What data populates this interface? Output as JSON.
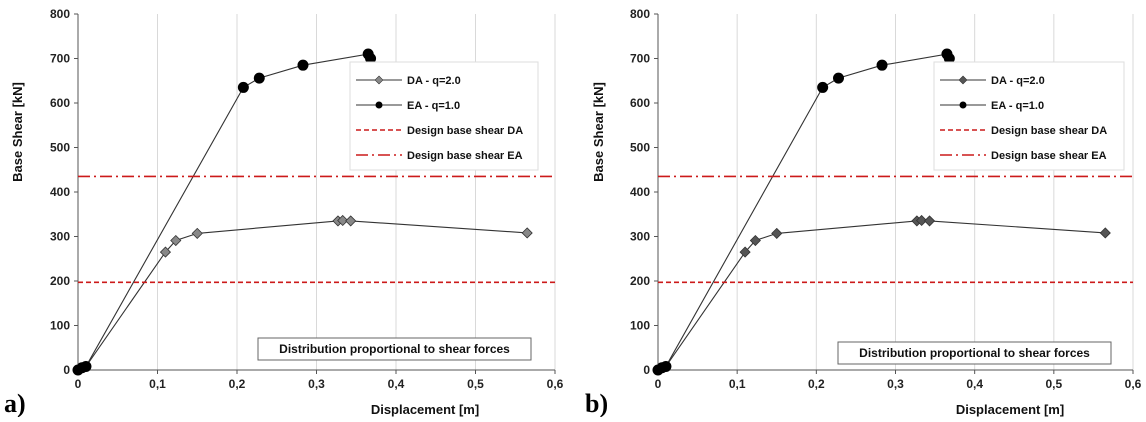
{
  "chart_data": [
    {
      "type": "line",
      "panel": "a)",
      "xlabel": "Displacement [m]",
      "ylabel": "Base Shear [kN]",
      "xlim": [
        0,
        0.6
      ],
      "ylim": [
        0,
        800
      ],
      "x_ticks": [
        "0",
        "0,1",
        "0,2",
        "0,3",
        "0,4",
        "0,5",
        "0,6"
      ],
      "y_ticks": [
        "0",
        "100",
        "200",
        "300",
        "400",
        "500",
        "600",
        "700",
        "800"
      ],
      "grid": "vertical",
      "legend_position": "right",
      "annotation": "Distribution proportional to shear forces",
      "series": [
        {
          "name": "DA - q=2.0",
          "marker": "diamond",
          "color": "#888888",
          "x": [
            0,
            0.005,
            0.01,
            0.11,
            0.123,
            0.15,
            0.327,
            0.333,
            0.343,
            0.565
          ],
          "y": [
            0,
            5,
            8,
            265,
            291,
            307,
            335,
            336,
            335,
            308
          ]
        },
        {
          "name": "EA - q=1.0",
          "marker": "circle",
          "color": "#000000",
          "x": [
            0,
            0.005,
            0.01,
            0.208,
            0.228,
            0.283,
            0.365,
            0.368
          ],
          "y": [
            0,
            5,
            8,
            635,
            656,
            685,
            710,
            700
          ]
        },
        {
          "name": "Design base shear DA",
          "style": "dashed",
          "color": "#cc1a1a",
          "x": [
            0,
            0.6
          ],
          "y": [
            197,
            197
          ]
        },
        {
          "name": "Design base shear EA",
          "style": "dashdot",
          "color": "#cc1a1a",
          "x": [
            0,
            0.6
          ],
          "y": [
            435,
            435
          ]
        }
      ]
    },
    {
      "type": "line",
      "panel": "b)",
      "xlabel": "Displacement [m]",
      "ylabel": "Base Shear [kN]",
      "xlim": [
        0,
        0.6
      ],
      "ylim": [
        0,
        800
      ],
      "x_ticks": [
        "0",
        "0,1",
        "0,2",
        "0,3",
        "0,4",
        "0,5",
        "0,6"
      ],
      "y_ticks": [
        "0",
        "100",
        "200",
        "300",
        "400",
        "500",
        "600",
        "700",
        "800"
      ],
      "grid": "vertical",
      "legend_position": "right",
      "annotation": "Distribution proportional to shear forces",
      "series": [
        {
          "name": "DA - q=2.0",
          "marker": "diamond",
          "color": "#555555",
          "x": [
            0,
            0.005,
            0.01,
            0.11,
            0.123,
            0.15,
            0.327,
            0.333,
            0.343,
            0.565
          ],
          "y": [
            0,
            5,
            8,
            265,
            291,
            307,
            335,
            336,
            335,
            308
          ]
        },
        {
          "name": "EA - q=1.0",
          "marker": "circle",
          "color": "#000000",
          "x": [
            0,
            0.005,
            0.01,
            0.208,
            0.228,
            0.283,
            0.365,
            0.368
          ],
          "y": [
            0,
            5,
            8,
            635,
            656,
            685,
            710,
            700
          ]
        },
        {
          "name": "Design base shear DA",
          "style": "dashed",
          "color": "#cc1a1a",
          "x": [
            0,
            0.6
          ],
          "y": [
            197,
            197
          ]
        },
        {
          "name": "Design base shear EA",
          "style": "dashdot",
          "color": "#cc1a1a",
          "x": [
            0,
            0.6
          ],
          "y": [
            435,
            435
          ]
        }
      ]
    }
  ]
}
